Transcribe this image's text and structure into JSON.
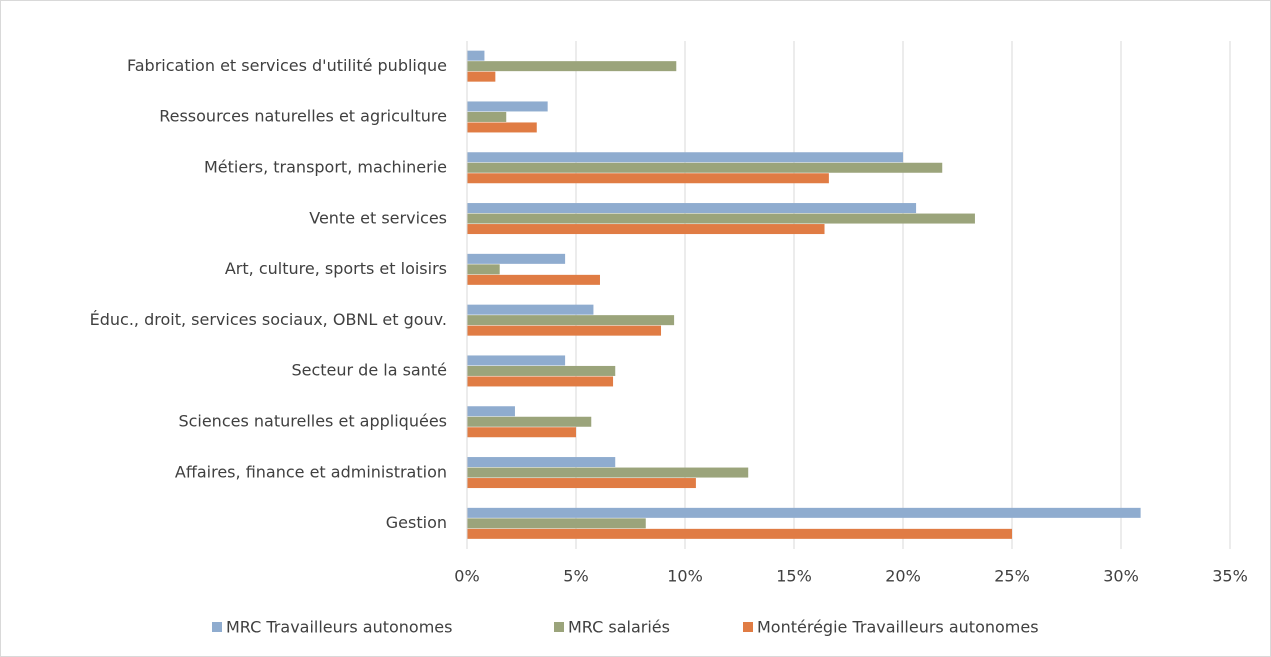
{
  "chart_data": {
    "type": "bar",
    "orientation": "horizontal",
    "categories": [
      "Fabrication et services d'utilité publique",
      "Ressources naturelles et agriculture",
      "Métiers, transport, machinerie",
      "Vente et services",
      "Art, culture, sports et loisirs",
      "Éduc., droit, services sociaux, OBNL et gouv.",
      "Secteur de la santé",
      "Sciences naturelles et appliquées",
      "Affaires, finance et administration",
      "Gestion"
    ],
    "series": [
      {
        "name": "MRC  Travailleurs autonomes",
        "color": "#8faccf",
        "values": [
          0.8,
          3.7,
          20.0,
          20.6,
          4.5,
          5.8,
          4.5,
          2.2,
          6.8,
          30.9
        ]
      },
      {
        "name": "MRC salariés",
        "color": "#9ba47b",
        "values": [
          9.6,
          1.8,
          21.8,
          23.3,
          1.5,
          9.5,
          6.8,
          5.7,
          12.9,
          8.2
        ]
      },
      {
        "name": "Montérégie Travailleurs autonomes",
        "color": "#e07c44",
        "values": [
          1.3,
          3.2,
          16.6,
          16.4,
          6.1,
          8.9,
          6.7,
          5.0,
          10.5,
          25.0
        ]
      }
    ],
    "xlim": [
      0,
      35
    ],
    "xticks": [
      {
        "value": 0,
        "label": "0%"
      },
      {
        "value": 5,
        "label": "5%"
      },
      {
        "value": 10,
        "label": "10%"
      },
      {
        "value": 15,
        "label": "15%"
      },
      {
        "value": 20,
        "label": "20%"
      },
      {
        "value": 25,
        "label": "25%"
      },
      {
        "value": 30,
        "label": "30%"
      },
      {
        "value": 35,
        "label": "35%"
      }
    ],
    "grid": true,
    "legend": "bottom"
  }
}
